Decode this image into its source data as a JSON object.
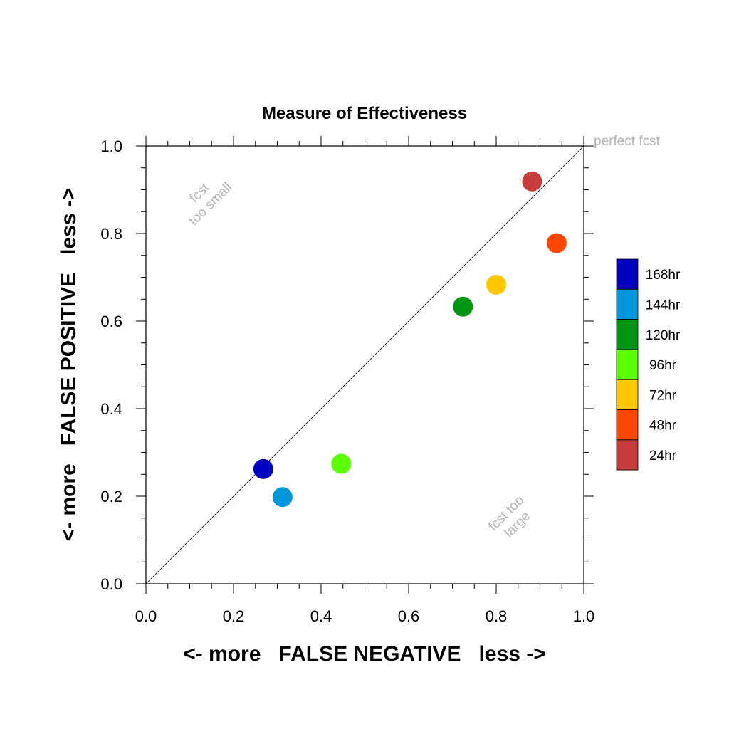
{
  "chart_data": {
    "type": "scatter",
    "title": "Measure of Effectiveness",
    "xlabel": "<- more   FALSE NEGATIVE   less ->",
    "ylabel": "<- more   FALSE POSITIVE   less ->",
    "xlim": [
      0,
      1
    ],
    "ylim": [
      0,
      1
    ],
    "x_ticks": [
      "0.0",
      "0.2",
      "0.4",
      "0.6",
      "0.8",
      "1.0"
    ],
    "y_ticks": [
      "0.0",
      "0.2",
      "0.4",
      "0.6",
      "0.8",
      "1.0"
    ],
    "grid": false,
    "legend_position": "right",
    "diagonal": true,
    "annotations": {
      "perfect": "perfect fcst",
      "small_line1": "fcst",
      "small_line2": "too small",
      "large_line1": "fcst too",
      "large_line2": "large"
    },
    "series": [
      {
        "name": "168hr",
        "x": 0.268,
        "y": 0.262,
        "color": "#0000c0"
      },
      {
        "name": "144hr",
        "x": 0.312,
        "y": 0.198,
        "color": "#0096dc"
      },
      {
        "name": "120hr",
        "x": 0.724,
        "y": 0.633,
        "color": "#009614"
      },
      {
        "name": "96hr",
        "x": 0.446,
        "y": 0.274,
        "color": "#5aff00"
      },
      {
        "name": "72hr",
        "x": 0.8,
        "y": 0.683,
        "color": "#ffc800"
      },
      {
        "name": "48hr",
        "x": 0.938,
        "y": 0.778,
        "color": "#ff4600"
      },
      {
        "name": "24hr",
        "x": 0.882,
        "y": 0.919,
        "color": "#c83c3c"
      }
    ]
  }
}
